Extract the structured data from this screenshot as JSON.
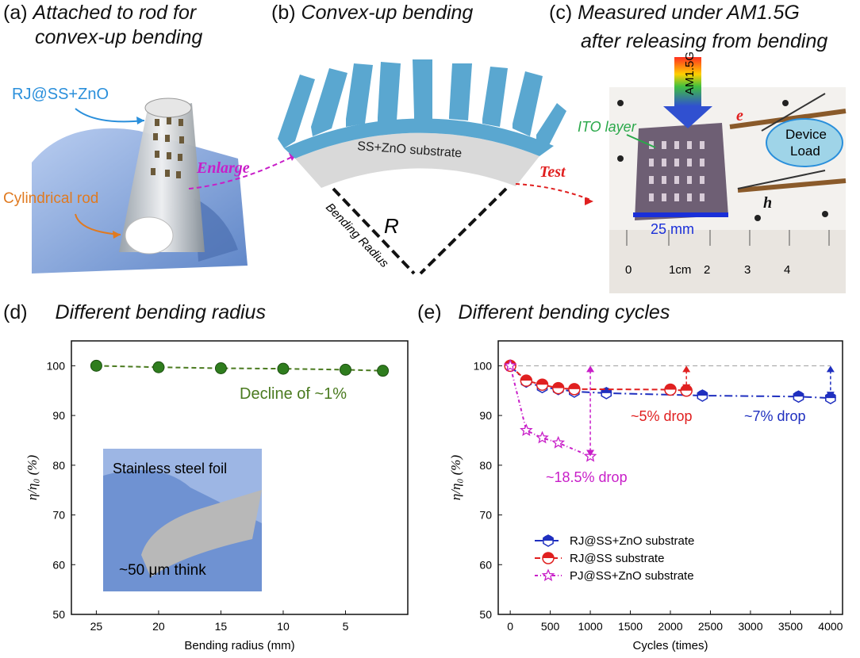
{
  "panels": {
    "a": {
      "letter": "(a)",
      "title_l1": "Attached to rod for",
      "title_l2": "convex-up bending",
      "label_top": "RJ@SS+ZnO",
      "label_rod": "Cylindrical rod",
      "arrow_text": "Enlarge"
    },
    "b": {
      "letter": "(b)",
      "title": "Convex-up bending",
      "substrate": "SS+ZnO substrate",
      "radius_symbol": "R",
      "radius_label": "Bending Radius",
      "arrow_text": "Test"
    },
    "c": {
      "letter": "(c)",
      "title_l1": "Measured under AM1.5G",
      "title_l2": "after releasing from bending",
      "am_label": "AM1.5G",
      "ito": "ITO layer",
      "e": "e",
      "h": "h",
      "device_l1": "Device",
      "device_l2": "Load",
      "scale": "25 mm",
      "ruler_ticks": [
        "0",
        "1cm",
        "2",
        "3",
        "4"
      ]
    },
    "d": {
      "letter": "(d)",
      "title": "Different  bending radius"
    },
    "e": {
      "letter": "(e)",
      "title": "Different  bending cycles"
    }
  },
  "colors": {
    "green": "#4a7a1f",
    "blue": "#1f2fbf",
    "red": "#e02020",
    "magenta": "#c81ec8",
    "diagram": "#5aa7d0",
    "substrate": "#d9d9d9"
  },
  "chart_data": [
    {
      "type": "line",
      "xlabel": "Bending radius (mm)",
      "ylabel": "η/η₀ (%)",
      "ylim": [
        50,
        105
      ],
      "yticks": [
        50,
        60,
        70,
        80,
        90,
        100
      ],
      "xticks": [
        25,
        20,
        15,
        10,
        5
      ],
      "x_reversed": true,
      "series": [
        {
          "values": [
            [
              25,
              100
            ],
            [
              20,
              99.7
            ],
            [
              15,
              99.5
            ],
            [
              10,
              99.4
            ],
            [
              5,
              99.2
            ],
            [
              2,
              99
            ]
          ]
        }
      ],
      "annotation": "Decline of ~1%",
      "inset": {
        "text_top": "Stainless steel foil",
        "text_bottom": "~50 μm think"
      }
    },
    {
      "type": "line",
      "xlabel": "Cycles (times)",
      "ylabel": "η/η₀ (%)",
      "ylim": [
        50,
        105
      ],
      "xlim": [
        -150,
        4150
      ],
      "yticks": [
        50,
        60,
        70,
        80,
        90,
        100
      ],
      "xticks": [
        0,
        500,
        1000,
        1500,
        2000,
        2500,
        3000,
        3500,
        4000
      ],
      "series": [
        {
          "name": "RJ@SS+ZnO substrate",
          "color": "#1f2fbf",
          "values": [
            [
              0,
              100
            ],
            [
              200,
              96.8
            ],
            [
              400,
              95.7
            ],
            [
              600,
              95.3
            ],
            [
              800,
              94.8
            ],
            [
              1200,
              94.5
            ],
            [
              2400,
              94
            ],
            [
              3600,
              93.8
            ],
            [
              4000,
              93.5
            ]
          ]
        },
        {
          "name": "RJ@SS substrate",
          "color": "#e02020",
          "values": [
            [
              0,
              100
            ],
            [
              200,
              97
            ],
            [
              400,
              96.2
            ],
            [
              600,
              95.5
            ],
            [
              800,
              95.3
            ],
            [
              2000,
              95.2
            ],
            [
              2200,
              95
            ]
          ]
        },
        {
          "name": "PJ@SS+ZnO substrate",
          "color": "#c81ec8",
          "values": [
            [
              0,
              100
            ],
            [
              200,
              87
            ],
            [
              400,
              85.5
            ],
            [
              600,
              84.5
            ],
            [
              1000,
              81.8
            ]
          ]
        }
      ],
      "annotations": [
        "~5% drop",
        "~7% drop",
        "~18.5% drop"
      ]
    }
  ]
}
